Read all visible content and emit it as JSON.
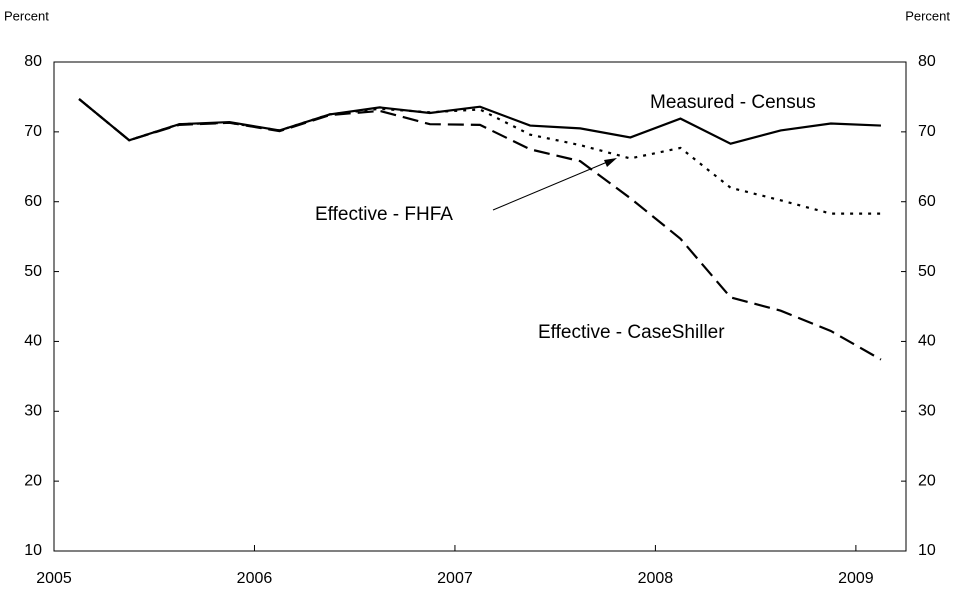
{
  "chart_data": {
    "type": "line",
    "y_label": "Percent",
    "y2_label": "Percent",
    "x": [
      2005.125,
      2005.375,
      2005.625,
      2005.875,
      2006.125,
      2006.375,
      2006.625,
      2006.875,
      2007.125,
      2007.375,
      2007.625,
      2007.875,
      2008.125,
      2008.375,
      2008.625,
      2008.875,
      2009.125
    ],
    "series": [
      {
        "name": "Measured - Census",
        "color": "#000000",
        "dash": "solid",
        "values": [
          74.7,
          68.8,
          71.1,
          71.4,
          70.2,
          72.5,
          73.5,
          72.7,
          73.6,
          70.9,
          70.5,
          69.2,
          71.9,
          68.3,
          70.2,
          71.2,
          70.9
        ]
      },
      {
        "name": "Effective - FHFA",
        "color": "#000000",
        "dash": "dotted",
        "values": [
          74.7,
          68.8,
          71.1,
          71.3,
          70.2,
          72.5,
          73.3,
          72.8,
          73.2,
          69.6,
          68.1,
          66.2,
          67.7,
          62.0,
          60.2,
          58.3,
          58.3
        ]
      },
      {
        "name": "Effective - CaseShiller",
        "color": "#000000",
        "dash": "dashed",
        "values": [
          74.7,
          68.8,
          71.0,
          71.3,
          70.1,
          72.4,
          73.0,
          71.1,
          71.0,
          67.5,
          65.8,
          60.5,
          54.7,
          46.3,
          44.4,
          41.5,
          37.4
        ]
      }
    ],
    "xlim": [
      2005,
      2009.25
    ],
    "xticks": [
      2005,
      2006,
      2007,
      2008,
      2009
    ],
    "ylim": [
      10,
      80
    ],
    "yticks": [
      10,
      20,
      30,
      40,
      50,
      60,
      70,
      80
    ],
    "y2lim": [
      10,
      80
    ],
    "y2ticks": [
      10,
      20,
      30,
      40,
      50,
      60,
      70,
      80
    ],
    "grid": false
  }
}
